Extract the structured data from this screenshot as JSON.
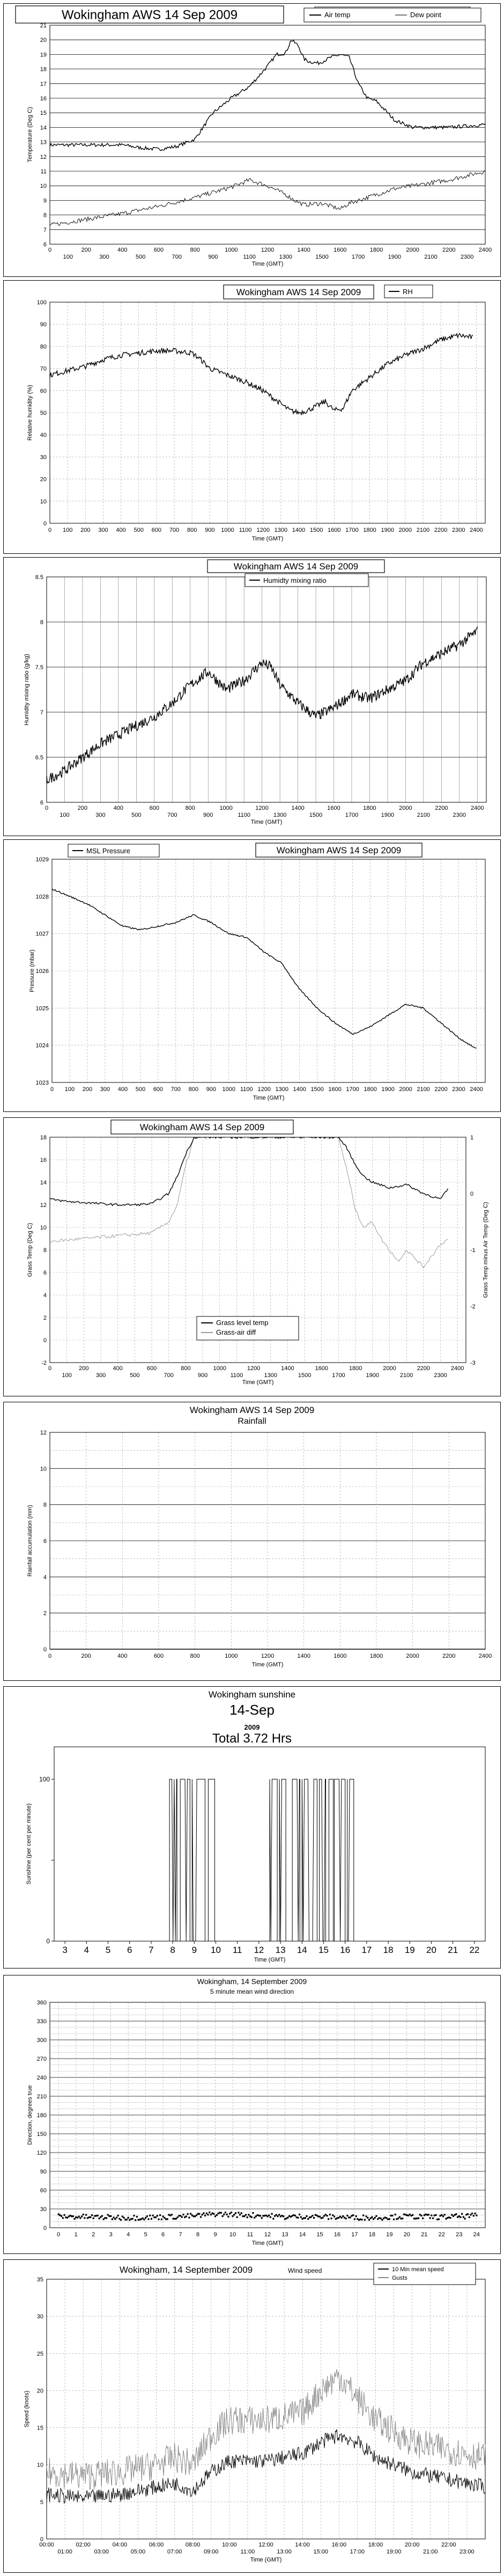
{
  "chart_data": [
    {
      "type": "line",
      "title": "Wokingham AWS 14 Sep 2009",
      "xlabel": "Time (GMT)",
      "ylabel": "Temperature (Deg C)",
      "xlim": [
        0,
        2400
      ],
      "ylim": [
        6,
        21
      ],
      "x_ticks_upper": [
        "0",
        "200",
        "400",
        "600",
        "800",
        "1000",
        "1200",
        "1400",
        "1600",
        "1800",
        "2000",
        "2200",
        "2400"
      ],
      "x_ticks_lower": [
        "100",
        "300",
        "500",
        "700",
        "900",
        "1100",
        "1300",
        "1500",
        "1700",
        "1900",
        "2100",
        "2300"
      ],
      "y_ticks": [
        "6",
        "7",
        "8",
        "9",
        "10",
        "11",
        "12",
        "13",
        "14",
        "15",
        "16",
        "17",
        "18",
        "19",
        "20",
        "21"
      ],
      "legend_position": "top-right",
      "series": [
        {
          "name": "Air temp",
          "color": "#000000",
          "noise": 0.12,
          "x": [
            0,
            200,
            400,
            500,
            600,
            700,
            800,
            900,
            1000,
            1100,
            1200,
            1250,
            1300,
            1330,
            1370,
            1400,
            1430,
            1480,
            1500,
            1550,
            1600,
            1650,
            1700,
            1750,
            1800,
            1900,
            2000,
            2100,
            2200,
            2300,
            2400
          ],
          "y": [
            12.8,
            12.8,
            12.8,
            12.6,
            12.5,
            12.7,
            13.2,
            15.0,
            16.0,
            16.8,
            18.2,
            19.0,
            19.1,
            20.0,
            19.6,
            18.7,
            18.5,
            18.4,
            18.5,
            18.8,
            19.0,
            18.8,
            17.0,
            16.0,
            15.8,
            14.5,
            14.0,
            14.0,
            14.0,
            14.1,
            14.2
          ]
        },
        {
          "name": "Dew point",
          "color": "#777777",
          "noise": 0.15,
          "x": [
            0,
            200,
            400,
            600,
            800,
            1000,
            1100,
            1200,
            1300,
            1350,
            1400,
            1500,
            1600,
            1650,
            1700,
            1800,
            1900,
            2000,
            2100,
            2200,
            2300,
            2400
          ],
          "y": [
            7.3,
            7.7,
            8.1,
            8.6,
            9.2,
            9.9,
            10.4,
            10.0,
            9.4,
            9.0,
            8.7,
            8.8,
            8.4,
            8.8,
            9.0,
            9.4,
            9.8,
            10.0,
            10.2,
            10.4,
            10.7,
            11.0
          ]
        }
      ]
    },
    {
      "type": "line",
      "title": "Wokingham AWS 14 Sep 2009",
      "xlabel": "Time (GMT)",
      "ylabel": "Relative humidity (%)",
      "xlim": [
        0,
        2450
      ],
      "ylim": [
        0,
        100
      ],
      "x_ticks": [
        "0",
        "100",
        "200",
        "300",
        "400",
        "500",
        "600",
        "700",
        "800",
        "900",
        "1000",
        "1100",
        "1200",
        "1300",
        "1400",
        "1500",
        "1600",
        "1700",
        "1800",
        "1900",
        "2000",
        "2100",
        "2200",
        "2300",
        "2400"
      ],
      "y_ticks": [
        "0",
        "10",
        "20",
        "30",
        "40",
        "50",
        "60",
        "70",
        "80",
        "90",
        "100"
      ],
      "legend_position": "top-right",
      "series": [
        {
          "name": "RH",
          "color": "#000000",
          "noise": 1.2,
          "x": [
            0,
            100,
            200,
            300,
            400,
            500,
            600,
            700,
            800,
            850,
            900,
            1000,
            1100,
            1200,
            1300,
            1350,
            1400,
            1450,
            1500,
            1550,
            1600,
            1650,
            1700,
            1800,
            1900,
            2000,
            2100,
            2200,
            2300,
            2380
          ],
          "y": [
            67,
            69,
            71,
            74,
            76,
            77,
            78,
            78,
            77,
            74,
            70,
            67,
            64,
            60,
            54,
            51,
            50,
            51,
            53,
            55,
            51,
            52,
            60,
            66,
            72,
            76,
            79,
            83,
            85,
            84
          ]
        }
      ]
    },
    {
      "type": "line",
      "title": "Wokingham AWS 14 Sep 2009",
      "xlabel": "Time (GMT)",
      "ylabel": "Humidity mixing ratio (g/kg)",
      "xlim": [
        0,
        2450
      ],
      "ylim": [
        6,
        8.5
      ],
      "x_ticks_upper": [
        "0",
        "200",
        "400",
        "600",
        "800",
        "1000",
        "1200",
        "1400",
        "1600",
        "1800",
        "2000",
        "2200",
        "2400"
      ],
      "x_ticks_lower": [
        "100",
        "300",
        "500",
        "700",
        "900",
        "1100",
        "1300",
        "1500",
        "1700",
        "1900",
        "2100",
        "2300"
      ],
      "y_ticks": [
        "6",
        "6.5",
        "7",
        "7.5",
        "8",
        "8.5"
      ],
      "legend_position": "top-center",
      "series": [
        {
          "name": "Humidty mixing ratio",
          "color": "#000000",
          "noise": 0.06,
          "x": [
            0,
            100,
            200,
            300,
            400,
            500,
            600,
            700,
            800,
            900,
            1000,
            1100,
            1200,
            1250,
            1300,
            1400,
            1500,
            1600,
            1700,
            1800,
            1900,
            2000,
            2100,
            2200,
            2300,
            2400
          ],
          "y": [
            6.25,
            6.35,
            6.5,
            6.65,
            6.75,
            6.85,
            6.95,
            7.1,
            7.3,
            7.45,
            7.25,
            7.35,
            7.55,
            7.5,
            7.3,
            7.1,
            6.95,
            7.05,
            7.2,
            7.15,
            7.25,
            7.35,
            7.55,
            7.65,
            7.75,
            7.9
          ]
        }
      ]
    },
    {
      "type": "line",
      "title": "Wokingham AWS 14 Sep 2009",
      "xlabel": "Time (GMT)",
      "ylabel": "Pressure (mbar)",
      "xlim": [
        0,
        2450
      ],
      "ylim": [
        1023,
        1029
      ],
      "x_ticks": [
        "0",
        "100",
        "200",
        "300",
        "400",
        "500",
        "600",
        "700",
        "800",
        "900",
        "1000",
        "1100",
        "1200",
        "1300",
        "1400",
        "1500",
        "1600",
        "1700",
        "1800",
        "1900",
        "2000",
        "2100",
        "2200",
        "2300",
        "2400"
      ],
      "y_ticks": [
        "1023",
        "1024",
        "1025",
        "1026",
        "1027",
        "1028",
        "1029"
      ],
      "legend_position": "top-left",
      "series": [
        {
          "name": "MSL Pressure",
          "color": "#000000",
          "noise": 0.02,
          "x": [
            0,
            100,
            200,
            300,
            400,
            500,
            600,
            700,
            800,
            900,
            1000,
            1100,
            1200,
            1300,
            1400,
            1500,
            1600,
            1700,
            1800,
            1900,
            2000,
            2100,
            2200,
            2300,
            2400
          ],
          "y": [
            1028.2,
            1028.0,
            1027.8,
            1027.5,
            1027.2,
            1027.1,
            1027.2,
            1027.3,
            1027.5,
            1027.3,
            1027.0,
            1026.9,
            1026.5,
            1026.2,
            1025.5,
            1025.0,
            1024.6,
            1024.3,
            1024.5,
            1024.8,
            1025.1,
            1025.0,
            1024.6,
            1024.2,
            1023.9
          ]
        }
      ]
    },
    {
      "type": "line",
      "title": "Wokingham AWS 14 Sep 2009",
      "xlabel": "Time (GMT)",
      "ylabel": "Grass Temp (Deg C)",
      "y2label": "Grass Temp minus Air Temp (Deg C)",
      "xlim": [
        0,
        2450
      ],
      "ylim": [
        -2,
        18
      ],
      "y2lim": [
        -3,
        1
      ],
      "x_ticks_upper": [
        "0",
        "200",
        "400",
        "600",
        "800",
        "1000",
        "1200",
        "1400",
        "1600",
        "1800",
        "2000",
        "2200",
        "2400"
      ],
      "x_ticks_lower": [
        "100",
        "300",
        "500",
        "700",
        "900",
        "1100",
        "1300",
        "1500",
        "1700",
        "1900",
        "2100",
        "2300"
      ],
      "y_ticks": [
        "-2",
        "0",
        "2",
        "4",
        "6",
        "8",
        "10",
        "12",
        "14",
        "16",
        "18"
      ],
      "y2_ticks": [
        "-3",
        "-2",
        "-1",
        "0",
        "1"
      ],
      "legend_position": "bottom-center",
      "series": [
        {
          "name": "Grass level temp",
          "color": "#000000",
          "noise": 0.1,
          "axis": "left",
          "x": [
            0,
            100,
            200,
            300,
            400,
            500,
            600,
            700,
            750,
            800,
            850,
            1700,
            1750,
            1800,
            1850,
            1900,
            2000,
            2100,
            2200,
            2300,
            2350
          ],
          "y": [
            12.5,
            12.3,
            12.2,
            12.1,
            12.0,
            12.0,
            12.1,
            13.0,
            14.5,
            16.5,
            18.0,
            18.0,
            17.0,
            15.5,
            14.5,
            14.0,
            13.5,
            13.8,
            13.0,
            12.5,
            13.5
          ]
        },
        {
          "name": "Grass-air diff",
          "color": "#999999",
          "noise": 0.03,
          "axis": "right",
          "x": [
            0,
            200,
            400,
            600,
            700,
            750,
            800,
            850,
            1700,
            1750,
            1800,
            1850,
            1900,
            1950,
            2000,
            2050,
            2100,
            2150,
            2200,
            2300,
            2350
          ],
          "y": [
            -0.85,
            -0.8,
            -0.75,
            -0.7,
            -0.5,
            -0.2,
            0.5,
            1.0,
            1.0,
            0.4,
            -0.3,
            -0.6,
            -0.5,
            -0.8,
            -1.0,
            -1.2,
            -1.0,
            -1.15,
            -1.3,
            -0.9,
            -0.8
          ]
        }
      ]
    },
    {
      "type": "line",
      "title": "Wokingham AWS 14 Sep 2009",
      "subtitle": "Rainfall",
      "xlabel": "Time (GMT)",
      "ylabel": "Rainfall accumulation (mm)",
      "xlim": [
        0,
        2400
      ],
      "ylim": [
        0,
        12
      ],
      "x_ticks": [
        "0",
        "200",
        "400",
        "600",
        "800",
        "1000",
        "1200",
        "1400",
        "1600",
        "1800",
        "2000",
        "2200",
        "2400"
      ],
      "y_ticks": [
        "0",
        "2",
        "4",
        "6",
        "8",
        "10",
        "12"
      ],
      "series": [
        {
          "name": "",
          "color": "#000000",
          "noise": 0,
          "x": [
            0,
            2400
          ],
          "y": [
            0,
            0
          ]
        }
      ]
    },
    {
      "type": "line",
      "title": "Wokingham sunshine",
      "subtitle": "14-Sep",
      "year": "2009",
      "total": "Total 3.72 Hrs",
      "xlabel": "Time (GMT)",
      "ylabel": "Sunshine (per cent per minute)",
      "xlim": [
        2.5,
        22.5
      ],
      "ylim": [
        0,
        120
      ],
      "x_ticks": [
        "3",
        "4",
        "5",
        "6",
        "7",
        "8",
        "9",
        "10",
        "11",
        "12",
        "13",
        "14",
        "15",
        "16",
        "17",
        "18",
        "19",
        "20",
        "21",
        "22"
      ],
      "y_ticks": [
        "0",
        "100"
      ],
      "y_mid_tick": 50,
      "sun_intervals": [
        [
          7.85,
          8.2
        ],
        [
          8.35,
          8.8
        ],
        [
          8.9,
          9.5
        ],
        [
          9.65,
          9.95
        ],
        [
          12.5,
          12.85
        ],
        [
          12.95,
          13.25
        ],
        [
          13.55,
          13.9
        ],
        [
          14.0,
          14.7
        ],
        [
          14.8,
          15.1
        ],
        [
          15.25,
          15.45
        ],
        [
          15.5,
          16.0
        ],
        [
          16.1,
          16.4
        ]
      ]
    },
    {
      "type": "scatter",
      "title": "Wokingham,  14 September 2009",
      "subtitle": "5 minute mean wind direction",
      "xlabel": "Time (GMT)",
      "ylabel": "Direction, degrees true",
      "xlim": [
        -0.5,
        24.5
      ],
      "ylim": [
        0,
        360
      ],
      "x_ticks": [
        "0",
        "1",
        "2",
        "3",
        "4",
        "5",
        "6",
        "7",
        "8",
        "9",
        "10",
        "11",
        "12",
        "13",
        "14",
        "15",
        "16",
        "17",
        "18",
        "19",
        "20",
        "21",
        "22",
        "23",
        "24"
      ],
      "y_ticks": [
        "0",
        "30",
        "60",
        "90",
        "120",
        "150",
        "180",
        "210",
        "240",
        "270",
        "300",
        "330",
        "360"
      ],
      "series": [
        {
          "name": "",
          "color": "#000000",
          "noise": 4,
          "x": [
            0,
            2,
            4,
            6,
            8,
            9,
            10,
            12,
            13,
            14,
            16,
            18,
            20,
            22,
            24
          ],
          "y": [
            18,
            17,
            16,
            17,
            19,
            22,
            21,
            19,
            17,
            18,
            17,
            16,
            18,
            17,
            19
          ]
        }
      ]
    },
    {
      "type": "line",
      "title": "Wokingham,  14 September 2009",
      "subtitle": "Wind speed",
      "xlabel": "Time (GMT)",
      "ylabel": "Speed (knots)",
      "xlim": [
        0,
        24
      ],
      "ylim": [
        0,
        35
      ],
      "x_ticks_upper": [
        "00:00",
        "02:00",
        "04:00",
        "06:00",
        "08:00",
        "10:00",
        "12:00",
        "14:00",
        "16:00",
        "18:00",
        "20:00",
        "22:00"
      ],
      "x_ticks_lower": [
        "01:00",
        "03:00",
        "05:00",
        "07:00",
        "09:00",
        "11:00",
        "13:00",
        "15:00",
        "17:00",
        "19:00",
        "21:00",
        "23:00"
      ],
      "y_ticks": [
        "0",
        "5",
        "10",
        "15",
        "20",
        "25",
        "30",
        "35"
      ],
      "legend_position": "top-right",
      "series": [
        {
          "name": "10 Min mean speed",
          "color": "#000000",
          "noise": 1.0,
          "x": [
            0,
            2,
            4,
            6,
            7,
            8,
            9,
            10,
            12,
            14,
            15,
            16,
            17,
            18,
            20,
            22,
            24
          ],
          "y": [
            6,
            5.5,
            6,
            7,
            7.5,
            6.5,
            9,
            10.5,
            10.5,
            11.5,
            13,
            14,
            13,
            11,
            9,
            8,
            7
          ]
        },
        {
          "name": "Gusts",
          "color": "#888888",
          "noise": 2.0,
          "x": [
            0,
            2,
            4,
            6,
            7,
            8,
            9,
            10,
            12,
            14,
            15,
            16,
            17,
            18,
            20,
            22,
            24
          ],
          "y": [
            9,
            8.5,
            9,
            10,
            11,
            10,
            14,
            16,
            16,
            17,
            20,
            22,
            19,
            16,
            13,
            12,
            11
          ]
        }
      ]
    }
  ]
}
